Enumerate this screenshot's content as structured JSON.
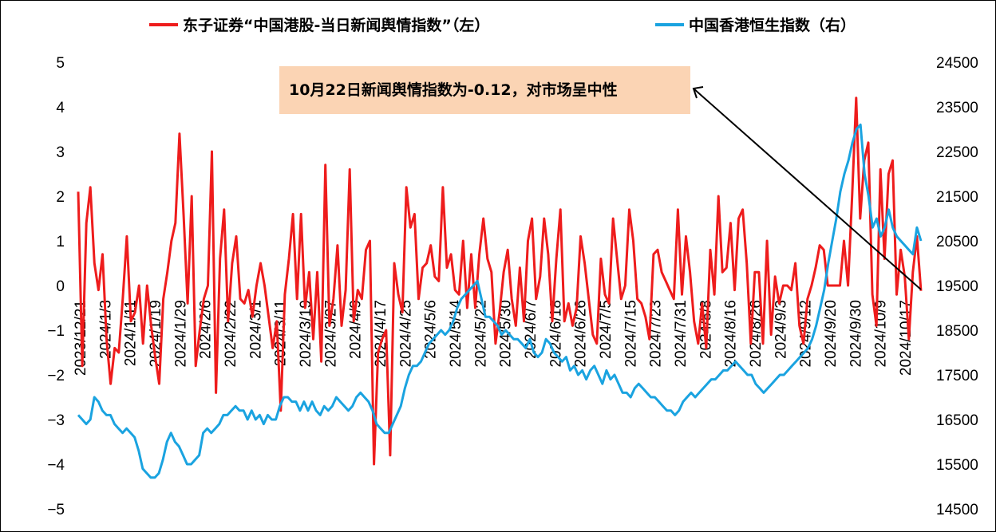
{
  "chart_data": {
    "type": "line",
    "legend": [
      {
        "label": "东子证券“中国港股-当日新闻舆情指数”（左）",
        "color": "#ee1c1c"
      },
      {
        "label": "中国香港恒生指数（右）",
        "color": "#1aa3e0"
      }
    ],
    "annotation": "10月22日新闻舆情指数为-0.12，对市场呈中性",
    "annotation_bg": "#fbd4b4",
    "y_left": {
      "min": -5,
      "max": 5,
      "ticks": [
        "5",
        "4",
        "3",
        "2",
        "1",
        "0",
        "−1",
        "−2",
        "−3",
        "−4",
        "−5"
      ]
    },
    "y_right": {
      "min": 14500,
      "max": 24500,
      "ticks": [
        "24500",
        "23500",
        "22500",
        "21500",
        "20500",
        "19500",
        "18500",
        "17500",
        "16500",
        "15500",
        "14500"
      ]
    },
    "x_ticks": [
      "2023/12/21",
      "2024/1/3",
      "2024/1/11",
      "2024/1/19",
      "2024/1/29",
      "2024/2/6",
      "2024/2/22",
      "2024/3/1",
      "2024/3/11",
      "2024/3/19",
      "2024/3/27",
      "2024/4/9",
      "2024/4/17",
      "2024/4/25",
      "2024/5/6",
      "2024/5/14",
      "2024/5/22",
      "2024/5/30",
      "2024/6/7",
      "2024/6/18",
      "2024/6/26",
      "2024/7/5",
      "2024/7/15",
      "2024/7/23",
      "2024/7/31",
      "2024/8/8",
      "2024/8/16",
      "2024/8/26",
      "2024/9/3",
      "2024/9/12",
      "2024/9/20",
      "2024/9/30",
      "2024/10/9",
      "2024/10/17"
    ],
    "series": [
      {
        "name": "东子证券“中国港股-当日新闻舆情指数”（左）",
        "axis": "left",
        "color": "#ee1c1c",
        "values": [
          2.1,
          -1.8,
          1.4,
          2.2,
          0.5,
          -0.1,
          0.7,
          -1.2,
          -2.2,
          -1.4,
          -1.5,
          -0.3,
          1.1,
          -0.8,
          -0.6,
          0.0,
          -1.3,
          0.0,
          -0.9,
          -1.6,
          -2.2,
          -0.3,
          0.3,
          1.0,
          1.4,
          3.4,
          1.6,
          -0.4,
          2.0,
          -1.8,
          -1.0,
          -0.3,
          0.0,
          3.0,
          -2.4,
          0.6,
          1.7,
          -0.8,
          0.5,
          1.1,
          -0.3,
          -0.4,
          -0.1,
          -0.7,
          0.0,
          0.5,
          0.0,
          -0.7,
          -1.4,
          -0.8,
          -2.8,
          -0.2,
          0.6,
          1.6,
          -0.3,
          1.6,
          -0.5,
          0.3,
          -1.2,
          0.3,
          -1.7,
          2.7,
          -0.9,
          -0.3,
          0.9,
          -0.9,
          -0.1,
          2.6,
          -0.8,
          -0.1,
          -0.3,
          0.8,
          1.0,
          -4.0,
          -1.5,
          -1.2,
          -1.0,
          -3.8,
          0.5,
          -0.2,
          -0.6,
          2.2,
          1.3,
          1.6,
          -0.3,
          0.4,
          0.5,
          0.9,
          0.2,
          0.1,
          2.2,
          0.4,
          0.7,
          -0.1,
          -0.2,
          1.0,
          -0.5,
          0.7,
          -0.5,
          0.7,
          1.5,
          0.6,
          0.3,
          -1.3,
          -0.6,
          0.3,
          0.8,
          -0.3,
          -0.9,
          0.4,
          -0.8,
          1.0,
          1.5,
          -0.3,
          0.2,
          1.5,
          0.7,
          -0.8,
          0.6,
          1.7,
          -0.8,
          -0.4,
          -0.9,
          -0.5,
          1.1,
          0.5,
          -0.3,
          -1.1,
          -1.3,
          0.6,
          -0.2,
          -0.4,
          1.5,
          0.6,
          -0.3,
          0.0,
          1.7,
          1.0,
          -0.3,
          -0.4,
          -0.7,
          -1.2,
          0.7,
          0.8,
          0.3,
          0.1,
          -0.1,
          -0.3,
          1.7,
          -0.2,
          1.1,
          0.3,
          -0.8,
          -1.3,
          -0.4,
          -1.4,
          0.8,
          -0.2,
          2.0,
          0.3,
          0.4,
          1.4,
          -0.1,
          1.5,
          1.7,
          0.5,
          -1.3,
          0.3,
          0.3,
          -1.3,
          1.0,
          -1.1,
          0.2,
          -0.4,
          0.0,
          0.0,
          -0.1,
          0.5,
          -0.9,
          -1.3,
          -0.3,
          0.0,
          0.4,
          0.9,
          0.8,
          0.0,
          0.0,
          0.0,
          0.0,
          1.0,
          0.0,
          2.0,
          4.2,
          1.5,
          2.8,
          3.2,
          -0.2,
          -0.9,
          2.6,
          0.6,
          2.5,
          2.8,
          -0.2,
          0.8,
          0.2,
          -1.2,
          0.3,
          1.1,
          -0.12
        ]
      },
      {
        "name": "中国香港恒生指数（右）",
        "axis": "right",
        "color": "#1aa3e0",
        "values": [
          16600,
          16500,
          16400,
          16500,
          17000,
          16900,
          16700,
          16600,
          16600,
          16400,
          16300,
          16200,
          16300,
          16200,
          16100,
          15800,
          15400,
          15300,
          15200,
          15200,
          15300,
          15600,
          16000,
          16200,
          16000,
          15900,
          15700,
          15500,
          15500,
          15600,
          15700,
          16200,
          16300,
          16200,
          16300,
          16400,
          16600,
          16600,
          16700,
          16800,
          16700,
          16700,
          16500,
          16700,
          16500,
          16600,
          16400,
          16600,
          16500,
          16500,
          16800,
          17000,
          17000,
          16900,
          16900,
          16700,
          16900,
          16700,
          16900,
          16700,
          16600,
          16800,
          16700,
          16800,
          17000,
          16900,
          16800,
          16700,
          16800,
          17000,
          17100,
          17000,
          16900,
          16700,
          16400,
          16300,
          16200,
          16200,
          16400,
          16600,
          16800,
          17200,
          17500,
          17700,
          17700,
          17800,
          18000,
          18200,
          18300,
          18400,
          18500,
          18400,
          18500,
          18700,
          19000,
          19200,
          19300,
          19400,
          19500,
          19600,
          19200,
          18800,
          18800,
          18700,
          18600,
          18400,
          18500,
          18400,
          18300,
          18300,
          18200,
          18100,
          18300,
          18000,
          17900,
          18000,
          18300,
          18200,
          18000,
          17900,
          17800,
          17900,
          17600,
          17700,
          17500,
          17600,
          17400,
          17600,
          17700,
          17500,
          17300,
          17600,
          17400,
          17500,
          17300,
          17100,
          17100,
          17000,
          17200,
          17300,
          17200,
          17100,
          17000,
          17000,
          16900,
          16800,
          16700,
          16700,
          16600,
          16700,
          16900,
          17000,
          17100,
          17000,
          17100,
          17200,
          17300,
          17400,
          17400,
          17500,
          17600,
          17600,
          17700,
          17800,
          17700,
          17600,
          17500,
          17500,
          17300,
          17200,
          17100,
          17200,
          17300,
          17400,
          17500,
          17500,
          17600,
          17700,
          17800,
          17900,
          18000,
          18100,
          18300,
          18600,
          19000,
          19400,
          20000,
          20500,
          21000,
          21600,
          22000,
          22300,
          22700,
          23000,
          23100,
          22000,
          21500,
          20800,
          21000,
          20600,
          20800,
          21200,
          20800,
          20600,
          20500,
          20400,
          20300,
          20200,
          20800,
          20500
        ]
      }
    ]
  }
}
